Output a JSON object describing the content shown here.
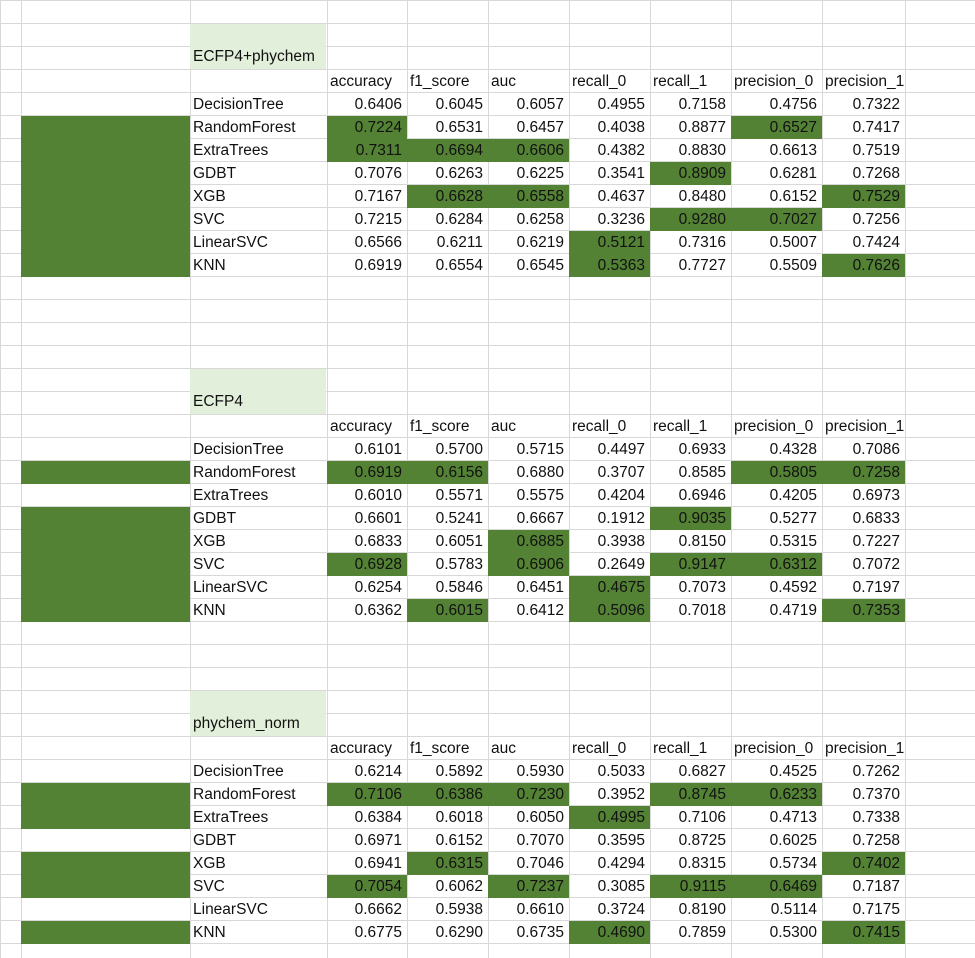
{
  "theme": {
    "highlight_color": "#548235",
    "title_fill_color": "#e2efda",
    "gridline_color": "#d8d8d8"
  },
  "columns": [
    "accuracy",
    "f1_score",
    "auc",
    "recall_0",
    "recall_1",
    "precision_0",
    "precision_1"
  ],
  "sections": [
    {
      "title": "ECFP4+phychem",
      "rows": [
        {
          "model": "DecisionTree",
          "values": [
            "0.6406",
            "0.6045",
            "0.6057",
            "0.4955",
            "0.7158",
            "0.4756",
            "0.7322"
          ],
          "highlight": [],
          "row_band": false
        },
        {
          "model": "RandomForest",
          "values": [
            "0.7224",
            "0.6531",
            "0.6457",
            "0.4038",
            "0.8877",
            "0.6527",
            "0.7417"
          ],
          "highlight": [
            0,
            5
          ],
          "row_band": true
        },
        {
          "model": "ExtraTrees",
          "values": [
            "0.7311",
            "0.6694",
            "0.6606",
            "0.4382",
            "0.8830",
            "0.6613",
            "0.7519"
          ],
          "highlight": [
            0,
            1,
            2
          ],
          "row_band": true
        },
        {
          "model": "GDBT",
          "values": [
            "0.7076",
            "0.6263",
            "0.6225",
            "0.3541",
            "0.8909",
            "0.6281",
            "0.7268"
          ],
          "highlight": [
            4
          ],
          "row_band": true
        },
        {
          "model": "XGB",
          "values": [
            "0.7167",
            "0.6628",
            "0.6558",
            "0.4637",
            "0.8480",
            "0.6152",
            "0.7529"
          ],
          "highlight": [
            1,
            2,
            6
          ],
          "row_band": true
        },
        {
          "model": "SVC",
          "values": [
            "0.7215",
            "0.6284",
            "0.6258",
            "0.3236",
            "0.9280",
            "0.7027",
            "0.7256"
          ],
          "highlight": [
            4,
            5
          ],
          "row_band": true
        },
        {
          "model": "LinearSVC",
          "values": [
            "0.6566",
            "0.6211",
            "0.6219",
            "0.5121",
            "0.7316",
            "0.5007",
            "0.7424"
          ],
          "highlight": [
            3
          ],
          "row_band": true
        },
        {
          "model": "KNN",
          "values": [
            "0.6919",
            "0.6554",
            "0.6545",
            "0.5363",
            "0.7727",
            "0.5509",
            "0.7626"
          ],
          "highlight": [
            3,
            6
          ],
          "row_band": true
        }
      ]
    },
    {
      "title": "ECFP4",
      "rows": [
        {
          "model": "DecisionTree",
          "values": [
            "0.6101",
            "0.5700",
            "0.5715",
            "0.4497",
            "0.6933",
            "0.4328",
            "0.7086"
          ],
          "highlight": [],
          "row_band": false
        },
        {
          "model": "RandomForest",
          "values": [
            "0.6919",
            "0.6156",
            "0.6880",
            "0.3707",
            "0.8585",
            "0.5805",
            "0.7258"
          ],
          "highlight": [
            0,
            1,
            5,
            6
          ],
          "row_band": true
        },
        {
          "model": "ExtraTrees",
          "values": [
            "0.6010",
            "0.5571",
            "0.5575",
            "0.4204",
            "0.6946",
            "0.4205",
            "0.6973"
          ],
          "highlight": [],
          "row_band": false
        },
        {
          "model": "GDBT",
          "values": [
            "0.6601",
            "0.5241",
            "0.6667",
            "0.1912",
            "0.9035",
            "0.5277",
            "0.6833"
          ],
          "highlight": [
            4
          ],
          "row_band": true
        },
        {
          "model": "XGB",
          "values": [
            "0.6833",
            "0.6051",
            "0.6885",
            "0.3938",
            "0.8150",
            "0.5315",
            "0.7227"
          ],
          "highlight": [
            2
          ],
          "row_band": true
        },
        {
          "model": "SVC",
          "values": [
            "0.6928",
            "0.5783",
            "0.6906",
            "0.2649",
            "0.9147",
            "0.6312",
            "0.7072"
          ],
          "highlight": [
            0,
            2,
            4,
            5
          ],
          "row_band": true
        },
        {
          "model": "LinearSVC",
          "values": [
            "0.6254",
            "0.5846",
            "0.6451",
            "0.4675",
            "0.7073",
            "0.4592",
            "0.7197"
          ],
          "highlight": [
            3
          ],
          "row_band": true
        },
        {
          "model": "KNN",
          "values": [
            "0.6362",
            "0.6015",
            "0.6412",
            "0.5096",
            "0.7018",
            "0.4719",
            "0.7353"
          ],
          "highlight": [
            1,
            3,
            6
          ],
          "row_band": true
        }
      ]
    },
    {
      "title": "phychem_norm",
      "rows": [
        {
          "model": "DecisionTree",
          "values": [
            "0.6214",
            "0.5892",
            "0.5930",
            "0.5033",
            "0.6827",
            "0.4525",
            "0.7262"
          ],
          "highlight": [],
          "row_band": false
        },
        {
          "model": "RandomForest",
          "values": [
            "0.7106",
            "0.6386",
            "0.7230",
            "0.3952",
            "0.8745",
            "0.6233",
            "0.7370"
          ],
          "highlight": [
            0,
            1,
            2,
            4,
            5
          ],
          "row_band": true
        },
        {
          "model": "ExtraTrees",
          "values": [
            "0.6384",
            "0.6018",
            "0.6050",
            "0.4995",
            "0.7106",
            "0.4713",
            "0.7338"
          ],
          "highlight": [
            3
          ],
          "row_band": true
        },
        {
          "model": "GDBT",
          "values": [
            "0.6971",
            "0.6152",
            "0.7070",
            "0.3595",
            "0.8725",
            "0.6025",
            "0.7258"
          ],
          "highlight": [],
          "row_band": false
        },
        {
          "model": "XGB",
          "values": [
            "0.6941",
            "0.6315",
            "0.7046",
            "0.4294",
            "0.8315",
            "0.5734",
            "0.7402"
          ],
          "highlight": [
            1,
            6
          ],
          "row_band": true
        },
        {
          "model": "SVC",
          "values": [
            "0.7054",
            "0.6062",
            "0.7237",
            "0.3085",
            "0.9115",
            "0.6469",
            "0.7187"
          ],
          "highlight": [
            0,
            2,
            4,
            5
          ],
          "row_band": true
        },
        {
          "model": "LinearSVC",
          "values": [
            "0.6662",
            "0.5938",
            "0.6610",
            "0.3724",
            "0.8190",
            "0.5114",
            "0.7175"
          ],
          "highlight": [],
          "row_band": false
        },
        {
          "model": "KNN",
          "values": [
            "0.6775",
            "0.6290",
            "0.6735",
            "0.4690",
            "0.7859",
            "0.5300",
            "0.7415"
          ],
          "highlight": [
            3,
            6
          ],
          "row_band": true
        }
      ]
    }
  ]
}
